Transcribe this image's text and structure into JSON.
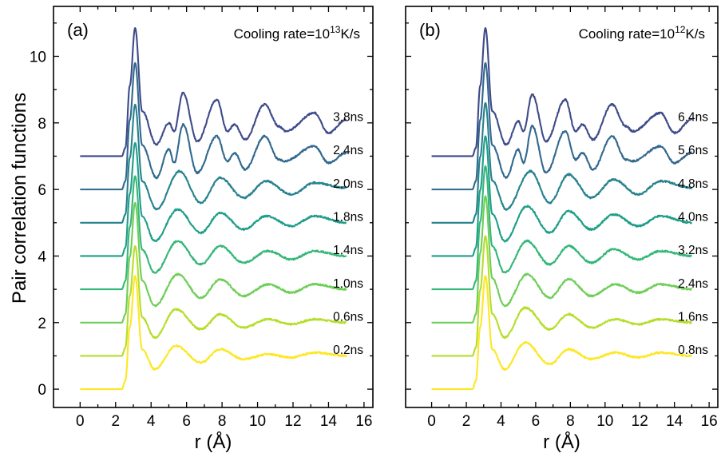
{
  "ylabel": "Pair correlation functions",
  "chart_data": [
    {
      "type": "line",
      "panel_label": "(a)",
      "title": "",
      "annotation": {
        "prefix": "Cooling rate=10",
        "exp": "13",
        "suffix": "K/s"
      },
      "xlabel": "r (Å)",
      "xlim": [
        -1.5,
        16.5
      ],
      "ylim": [
        -0.55,
        11.5
      ],
      "xticks": [
        0,
        2,
        4,
        6,
        8,
        10,
        12,
        14,
        16
      ],
      "yticks": [
        0,
        2,
        4,
        6,
        8,
        10
      ],
      "x_range": [
        0,
        15
      ],
      "grid": false,
      "series": [
        {
          "name": "0.2ns",
          "offset": 0,
          "color": "#fde725",
          "first_peak": [
            3.1,
            3.4
          ],
          "peaks": [
            [
              5.4,
              1.3
            ],
            [
              7.9,
              1.2
            ],
            [
              10.6,
              1.05
            ],
            [
              13.2,
              1.1
            ]
          ],
          "troughs": [
            [
              4.2,
              0.6
            ],
            [
              6.8,
              0.8
            ],
            [
              9.2,
              0.9
            ],
            [
              11.9,
              0.95
            ],
            [
              15.0,
              1.0
            ]
          ]
        },
        {
          "name": "0.6ns",
          "offset": 1,
          "color": "#b5de2b",
          "first_peak": [
            3.1,
            4.3
          ],
          "peaks": [
            [
              5.4,
              2.4
            ],
            [
              7.9,
              2.25
            ],
            [
              10.6,
              2.1
            ],
            [
              13.2,
              2.1
            ]
          ],
          "troughs": [
            [
              4.2,
              1.55
            ],
            [
              6.8,
              1.8
            ],
            [
              9.2,
              1.85
            ],
            [
              11.9,
              1.95
            ],
            [
              15.0,
              2.0
            ]
          ]
        },
        {
          "name": "1.0ns",
          "offset": 2,
          "color": "#6ece58",
          "first_peak": [
            3.1,
            5.6
          ],
          "peaks": [
            [
              5.5,
              3.45
            ],
            [
              7.9,
              3.3
            ],
            [
              10.6,
              3.15
            ],
            [
              13.2,
              3.15
            ]
          ],
          "troughs": [
            [
              4.2,
              2.5
            ],
            [
              6.8,
              2.75
            ],
            [
              9.2,
              2.8
            ],
            [
              11.9,
              2.9
            ],
            [
              15.0,
              3.0
            ]
          ]
        },
        {
          "name": "1.4ns",
          "offset": 3,
          "color": "#35b779",
          "first_peak": [
            3.1,
            6.4
          ],
          "peaks": [
            [
              5.5,
              4.45
            ],
            [
              7.9,
              4.3
            ],
            [
              10.6,
              4.15
            ],
            [
              13.2,
              4.15
            ]
          ],
          "troughs": [
            [
              4.2,
              3.5
            ],
            [
              6.8,
              3.75
            ],
            [
              9.2,
              3.8
            ],
            [
              11.9,
              3.9
            ],
            [
              15.0,
              4.0
            ]
          ]
        },
        {
          "name": "1.8ns",
          "offset": 4,
          "color": "#1f9e89",
          "first_peak": [
            3.1,
            7.4
          ],
          "peaks": [
            [
              5.5,
              5.4
            ],
            [
              7.9,
              5.3
            ],
            [
              10.5,
              5.2
            ],
            [
              13.2,
              5.2
            ]
          ],
          "troughs": [
            [
              4.2,
              4.45
            ],
            [
              6.8,
              4.7
            ],
            [
              9.2,
              4.8
            ],
            [
              11.9,
              4.9
            ],
            [
              15.0,
              5.0
            ]
          ]
        },
        {
          "name": "2.0ns",
          "offset": 5,
          "color": "#26828e",
          "first_peak": [
            3.1,
            8.55
          ],
          "peaks": [
            [
              5.6,
              6.55
            ],
            [
              7.9,
              6.35
            ],
            [
              10.5,
              6.25
            ],
            [
              13.2,
              6.2
            ]
          ],
          "troughs": [
            [
              4.3,
              5.4
            ],
            [
              6.8,
              5.6
            ],
            [
              9.2,
              5.75
            ],
            [
              11.9,
              5.85
            ],
            [
              15.0,
              6.05
            ]
          ]
        },
        {
          "name": "2.4ns",
          "offset": 6,
          "color": "#31688e",
          "first_peak": [
            3.1,
            9.8
          ],
          "peaks": [
            [
              5.0,
              7.2
            ],
            [
              5.8,
              7.95
            ],
            [
              7.7,
              7.6
            ],
            [
              8.7,
              7.1
            ],
            [
              10.4,
              7.6
            ],
            [
              11.2,
              6.9
            ],
            [
              13.2,
              7.3
            ]
          ],
          "troughs": [
            [
              4.3,
              6.35
            ],
            [
              5.3,
              6.8
            ],
            [
              6.6,
              6.5
            ],
            [
              8.3,
              6.85
            ],
            [
              9.3,
              6.6
            ],
            [
              11.5,
              6.85
            ],
            [
              14.0,
              6.8
            ],
            [
              15.0,
              7.1
            ]
          ]
        },
        {
          "name": "3.8ns",
          "offset": 7,
          "color": "#3e4a89",
          "first_peak": [
            3.1,
            10.85
          ],
          "peaks": [
            [
              5.0,
              8.0
            ],
            [
              5.8,
              8.9
            ],
            [
              7.7,
              8.7
            ],
            [
              8.7,
              7.95
            ],
            [
              10.4,
              8.55
            ],
            [
              11.2,
              7.9
            ],
            [
              13.2,
              8.3
            ]
          ],
          "troughs": [
            [
              4.3,
              7.35
            ],
            [
              5.3,
              7.75
            ],
            [
              6.6,
              7.45
            ],
            [
              8.3,
              7.75
            ],
            [
              9.3,
              7.5
            ],
            [
              11.6,
              7.75
            ],
            [
              14.0,
              7.7
            ],
            [
              15.0,
              8.1
            ]
          ]
        }
      ]
    },
    {
      "type": "line",
      "panel_label": "(b)",
      "title": "",
      "annotation": {
        "prefix": "Cooling rate=10",
        "exp": "12",
        "suffix": "K/s"
      },
      "xlabel": "r (Å)",
      "xlim": [
        -1.5,
        16.5
      ],
      "ylim": [
        -0.55,
        11.5
      ],
      "xticks": [
        0,
        2,
        4,
        6,
        8,
        10,
        12,
        14,
        16
      ],
      "yticks": [
        0,
        2,
        4,
        6,
        8,
        10
      ],
      "x_range": [
        0,
        15
      ],
      "grid": false,
      "series": [
        {
          "name": "0.8ns",
          "offset": 0,
          "color": "#fde725",
          "first_peak": [
            3.1,
            3.4
          ],
          "peaks": [
            [
              5.4,
              1.4
            ],
            [
              7.9,
              1.2
            ],
            [
              10.6,
              1.1
            ],
            [
              13.2,
              1.1
            ]
          ],
          "troughs": [
            [
              4.2,
              0.6
            ],
            [
              6.8,
              0.75
            ],
            [
              9.2,
              0.9
            ],
            [
              11.9,
              0.95
            ],
            [
              15.0,
              1.0
            ]
          ]
        },
        {
          "name": "1.6ns",
          "offset": 1,
          "color": "#b5de2b",
          "first_peak": [
            3.1,
            4.6
          ],
          "peaks": [
            [
              5.4,
              2.45
            ],
            [
              7.9,
              2.25
            ],
            [
              10.6,
              2.1
            ],
            [
              13.2,
              2.1
            ]
          ],
          "troughs": [
            [
              4.2,
              1.55
            ],
            [
              6.8,
              1.8
            ],
            [
              9.2,
              1.85
            ],
            [
              11.9,
              1.95
            ],
            [
              15.0,
              2.0
            ]
          ]
        },
        {
          "name": "2.4ns",
          "offset": 2,
          "color": "#6ece58",
          "first_peak": [
            3.1,
            5.8
          ],
          "peaks": [
            [
              5.5,
              3.45
            ],
            [
              7.9,
              3.3
            ],
            [
              10.6,
              3.15
            ],
            [
              13.2,
              3.15
            ]
          ],
          "troughs": [
            [
              4.2,
              2.5
            ],
            [
              6.8,
              2.75
            ],
            [
              9.2,
              2.8
            ],
            [
              11.9,
              2.9
            ],
            [
              15.0,
              3.0
            ]
          ]
        },
        {
          "name": "3.2ns",
          "offset": 3,
          "color": "#35b779",
          "first_peak": [
            3.1,
            6.7
          ],
          "peaks": [
            [
              5.5,
              4.45
            ],
            [
              7.9,
              4.3
            ],
            [
              10.5,
              4.2
            ],
            [
              13.2,
              4.15
            ]
          ],
          "troughs": [
            [
              4.2,
              3.5
            ],
            [
              6.8,
              3.75
            ],
            [
              9.2,
              3.8
            ],
            [
              11.9,
              3.9
            ],
            [
              15.0,
              4.0
            ]
          ]
        },
        {
          "name": "4.0ns",
          "offset": 4,
          "color": "#1f9e89",
          "first_peak": [
            3.1,
            7.6
          ],
          "peaks": [
            [
              5.5,
              5.5
            ],
            [
              7.9,
              5.35
            ],
            [
              10.5,
              5.25
            ],
            [
              13.2,
              5.2
            ]
          ],
          "troughs": [
            [
              4.2,
              4.45
            ],
            [
              6.8,
              4.7
            ],
            [
              9.2,
              4.8
            ],
            [
              11.9,
              4.9
            ],
            [
              15.0,
              5.0
            ]
          ]
        },
        {
          "name": "4.8ns",
          "offset": 5,
          "color": "#26828e",
          "first_peak": [
            3.1,
            8.6
          ],
          "peaks": [
            [
              5.7,
              6.55
            ],
            [
              7.9,
              6.45
            ],
            [
              10.5,
              6.3
            ],
            [
              13.2,
              6.25
            ]
          ],
          "troughs": [
            [
              4.3,
              5.4
            ],
            [
              6.8,
              5.6
            ],
            [
              9.2,
              5.75
            ],
            [
              11.9,
              5.85
            ],
            [
              15.0,
              6.05
            ]
          ]
        },
        {
          "name": "5.6ns",
          "offset": 6,
          "color": "#31688e",
          "first_peak": [
            3.1,
            9.8
          ],
          "peaks": [
            [
              5.0,
              7.2
            ],
            [
              5.8,
              7.9
            ],
            [
              7.7,
              7.75
            ],
            [
              8.7,
              7.1
            ],
            [
              10.4,
              7.6
            ],
            [
              11.2,
              6.9
            ],
            [
              13.2,
              7.3
            ]
          ],
          "troughs": [
            [
              4.3,
              6.35
            ],
            [
              5.3,
              6.8
            ],
            [
              6.6,
              6.5
            ],
            [
              8.3,
              6.9
            ],
            [
              9.3,
              6.6
            ],
            [
              11.6,
              6.85
            ],
            [
              14.0,
              6.8
            ],
            [
              15.0,
              7.1
            ]
          ]
        },
        {
          "name": "6.4ns",
          "offset": 7,
          "color": "#3e4a89",
          "first_peak": [
            3.1,
            10.85
          ],
          "peaks": [
            [
              5.0,
              8.05
            ],
            [
              5.8,
              8.85
            ],
            [
              7.7,
              8.7
            ],
            [
              8.7,
              7.95
            ],
            [
              10.4,
              8.55
            ],
            [
              11.2,
              7.9
            ],
            [
              13.2,
              8.3
            ]
          ],
          "troughs": [
            [
              4.3,
              7.35
            ],
            [
              5.3,
              7.75
            ],
            [
              6.6,
              7.45
            ],
            [
              8.3,
              7.75
            ],
            [
              9.3,
              7.5
            ],
            [
              11.6,
              7.75
            ],
            [
              14.0,
              7.7
            ],
            [
              15.0,
              8.1
            ]
          ]
        }
      ]
    }
  ]
}
